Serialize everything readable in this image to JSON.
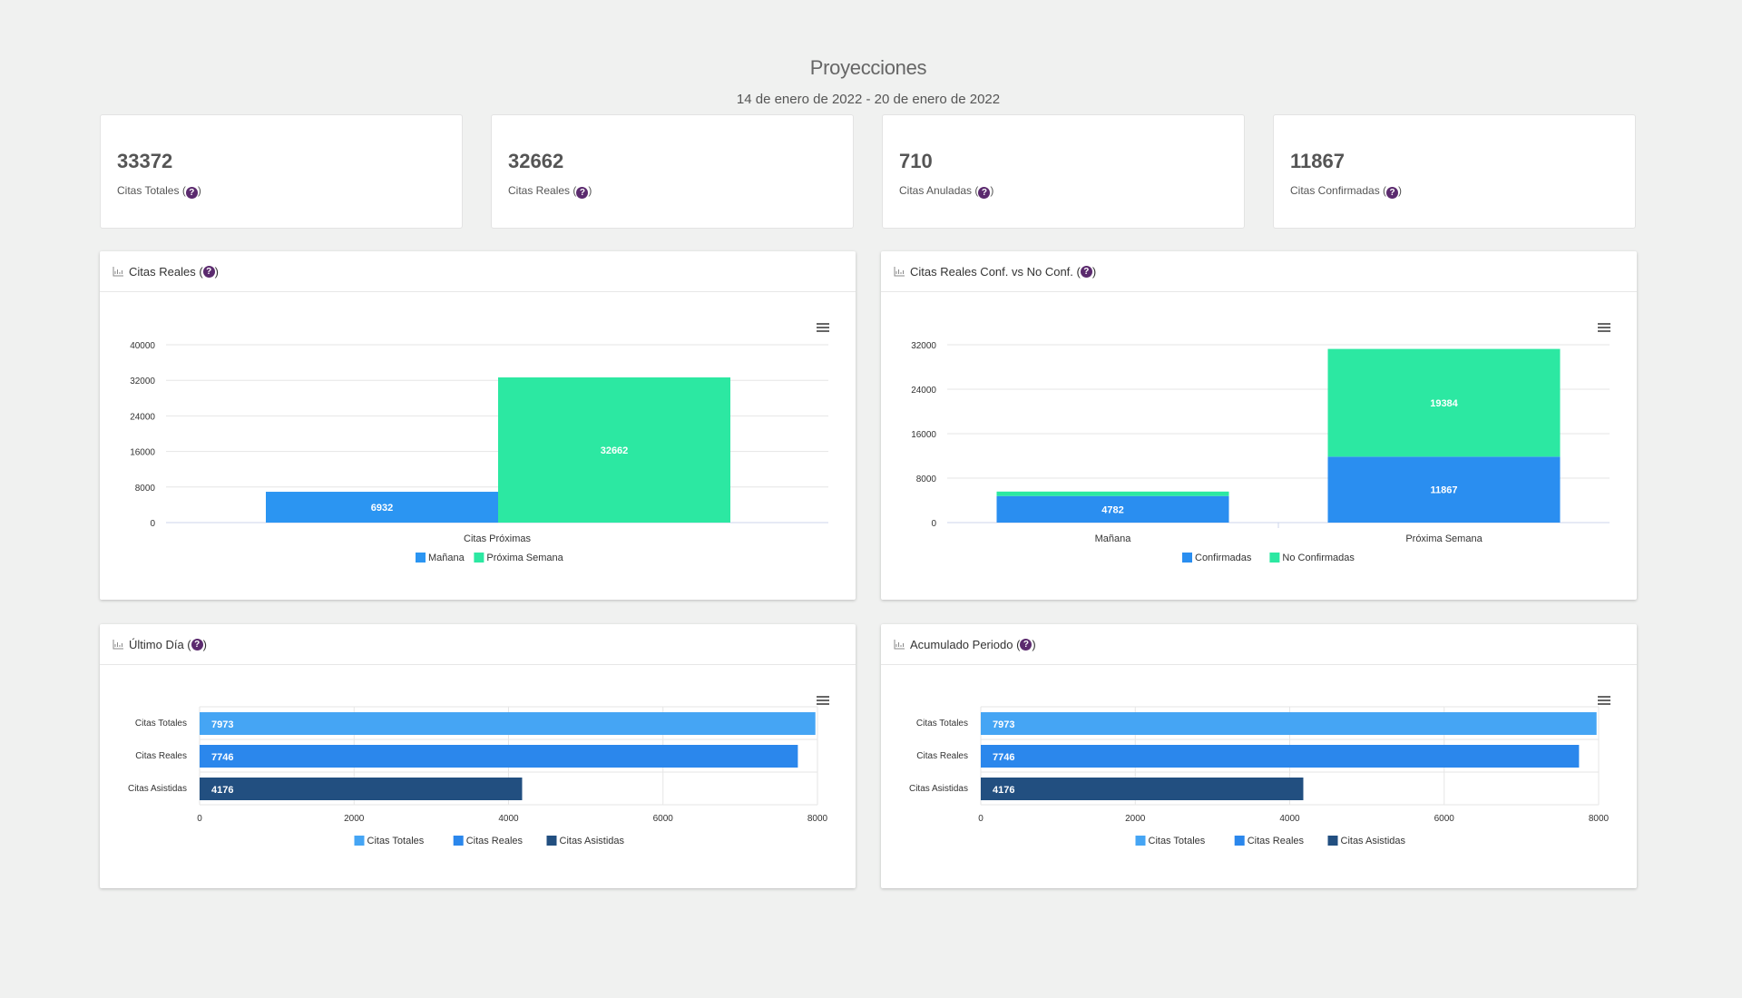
{
  "header": {
    "title": "Proyecciones",
    "date_range": "14 de enero de 2022 - 20 de enero de 2022"
  },
  "help_glyph": "?",
  "kpis": [
    {
      "value": "33372",
      "label": "Citas Totales"
    },
    {
      "value": "32662",
      "label": "Citas Reales"
    },
    {
      "value": "710",
      "label": "Citas Anuladas"
    },
    {
      "value": "11867",
      "label": "Citas Confirmadas"
    }
  ],
  "colors": {
    "manana": "#2b95f2",
    "proxima_semana": "#2ce8a2",
    "confirmadas": "#2a8ef0",
    "no_confirmadas": "#2ce8a2",
    "citas_totales": "#45a5f4",
    "citas_reales": "#2b87ec",
    "citas_asistidas": "#224f80",
    "help": "#5b2a6e"
  },
  "panels": {
    "citas_reales": {
      "title": "Citas Reales"
    },
    "conf_vs_noconf": {
      "title": "Citas Reales Conf. vs No Conf."
    },
    "ultimo_dia": {
      "title": "Último Día"
    },
    "acumulado": {
      "title": "Acumulado Periodo"
    }
  },
  "chart_data": [
    {
      "id": "citas_reales",
      "type": "bar",
      "title": "",
      "categories": [
        "Citas Próximas"
      ],
      "series": [
        {
          "name": "Mañana",
          "values": [
            6932
          ]
        },
        {
          "name": "Próxima Semana",
          "values": [
            32662
          ]
        }
      ],
      "yticks": [
        0,
        8000,
        16000,
        24000,
        32000,
        40000
      ],
      "ylim": [
        0,
        40000
      ],
      "grid": true,
      "legend": "bottom-center"
    },
    {
      "id": "conf_vs_noconf",
      "type": "bar",
      "stacked": true,
      "title": "",
      "categories": [
        "Mañana",
        "Próxima Semana"
      ],
      "series": [
        {
          "name": "Confirmadas",
          "values": [
            4782,
            11867
          ],
          "labels": [
            "4782",
            "11867"
          ]
        },
        {
          "name": "No Confirmadas",
          "values": [
            800,
            19384
          ],
          "labels": [
            "",
            "19384"
          ]
        }
      ],
      "yticks": [
        0,
        8000,
        16000,
        24000,
        32000
      ],
      "ylim": [
        0,
        32000
      ],
      "grid": true,
      "legend": "bottom-center"
    },
    {
      "id": "ultimo_dia",
      "type": "bar",
      "orientation": "horizontal",
      "title": "",
      "categories": [
        "Citas Totales",
        "Citas Reales",
        "Citas Asistidas"
      ],
      "values": [
        7973,
        7746,
        4176
      ],
      "xticks": [
        0,
        2000,
        4000,
        6000,
        8000
      ],
      "xlim": [
        0,
        8000
      ],
      "legend_entries": [
        "Citas Totales",
        "Citas Reales",
        "Citas Asistidas"
      ],
      "grid": true,
      "legend": "bottom-center"
    },
    {
      "id": "acumulado",
      "type": "bar",
      "orientation": "horizontal",
      "title": "",
      "categories": [
        "Citas Totales",
        "Citas Reales",
        "Citas Asistidas"
      ],
      "values": [
        7973,
        7746,
        4176
      ],
      "xticks": [
        0,
        2000,
        4000,
        6000,
        8000
      ],
      "xlim": [
        0,
        8000
      ],
      "legend_entries": [
        "Citas Totales",
        "Citas Reales",
        "Citas Asistidas"
      ],
      "grid": true,
      "legend": "bottom-center"
    }
  ]
}
